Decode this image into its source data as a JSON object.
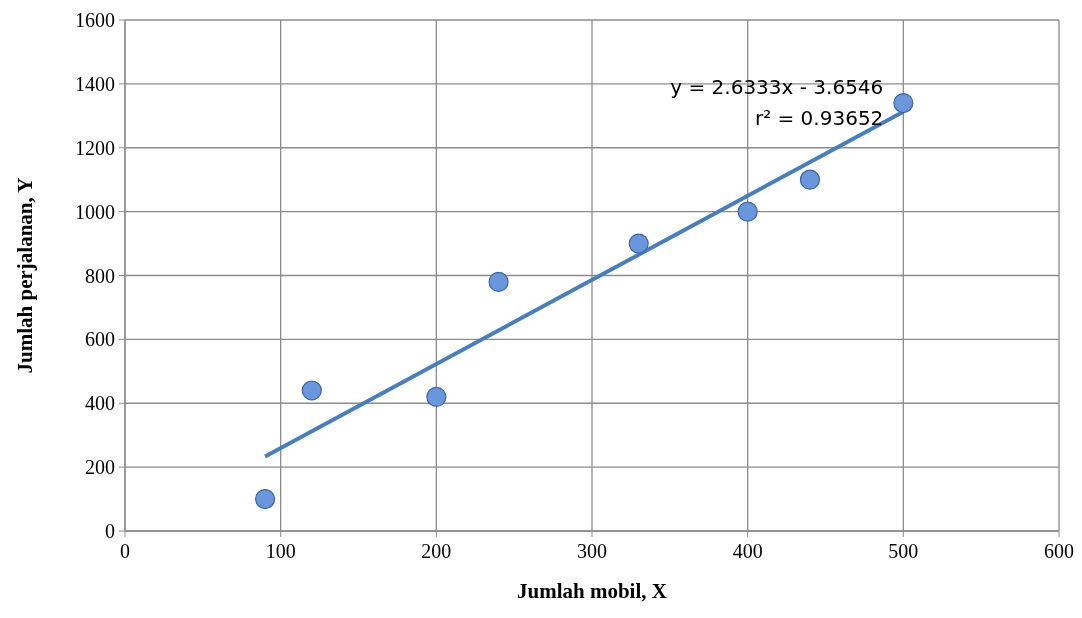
{
  "chart_data": {
    "type": "scatter",
    "xlabel": "Jumlah mobil, X",
    "ylabel": "Jumlah perjalanan, Y",
    "xlim": [
      0,
      600
    ],
    "xticks": [
      0,
      100,
      200,
      300,
      400,
      500,
      600
    ],
    "ylim": [
      0,
      1600
    ],
    "yticks": [
      0,
      200,
      400,
      600,
      800,
      1000,
      1200,
      1400,
      1600
    ],
    "grid": true,
    "series": [
      {
        "marker": "circle",
        "color": "#6a96dc",
        "x": [
          90,
          120,
          200,
          240,
          330,
          400,
          440,
          500
        ],
        "values": [
          100,
          440,
          420,
          780,
          900,
          1000,
          1100,
          1340
        ]
      },
      {
        "type": "line",
        "color": "#4a7ebb",
        "x": [
          90,
          500
        ],
        "values": [
          233,
          1313
        ]
      }
    ],
    "annotations": [
      {
        "text": "y = 2.6333x - 3.6546",
        "x": 500,
        "y": 1313
      },
      "r² = 0.93652"
    ]
  }
}
